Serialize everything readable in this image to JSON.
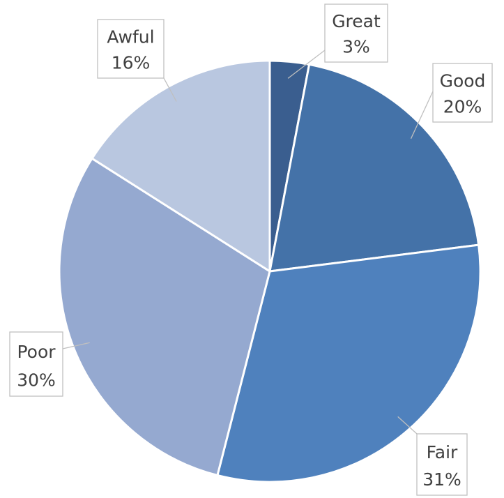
{
  "chart_data": {
    "type": "pie",
    "title": "",
    "start_angle_deg": 0,
    "direction": "clockwise",
    "slices": [
      {
        "label": "Great",
        "value": 3,
        "value_label": "3%",
        "color": "#3a5e8f"
      },
      {
        "label": "Good",
        "value": 20,
        "value_label": "20%",
        "color": "#4472a8"
      },
      {
        "label": "Fair",
        "value": 31,
        "value_label": "31%",
        "color": "#4f81bd"
      },
      {
        "label": "Poor",
        "value": 30,
        "value_label": "30%",
        "color": "#95a9d0"
      },
      {
        "label": "Awful",
        "value": 16,
        "value_label": "16%",
        "color": "#b9c7e0"
      }
    ],
    "labels": "callouts with name and percentage",
    "legend": "none"
  }
}
